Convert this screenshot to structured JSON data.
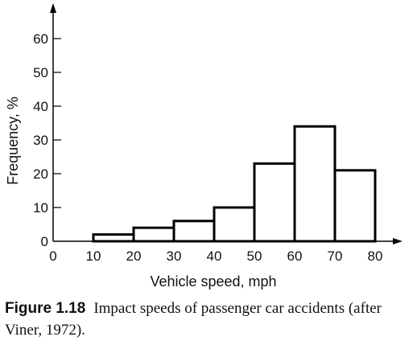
{
  "chart_data": {
    "type": "bar",
    "histogram": true,
    "bins": [
      [
        10,
        20
      ],
      [
        20,
        30
      ],
      [
        30,
        40
      ],
      [
        40,
        50
      ],
      [
        50,
        60
      ],
      [
        60,
        70
      ],
      [
        70,
        80
      ]
    ],
    "values": [
      2,
      4,
      6,
      10,
      23,
      34,
      21
    ],
    "xlabel": "Vehicle speed, mph",
    "ylabel": "Frequency, %",
    "xlim": [
      0,
      80
    ],
    "ylim": [
      0,
      60
    ],
    "xticks": [
      0,
      10,
      20,
      30,
      40,
      50,
      60,
      70,
      80
    ],
    "yticks": [
      0,
      10,
      20,
      30,
      40,
      50,
      60
    ],
    "grid": false,
    "bar_fill": "#ffffff",
    "bar_stroke": "#000000"
  },
  "caption": {
    "label": "Figure 1.18",
    "text": "Impact speeds of passenger car accidents (after Viner, 1972)."
  }
}
